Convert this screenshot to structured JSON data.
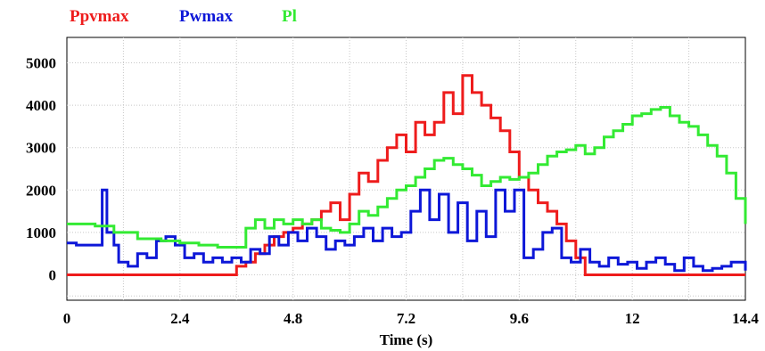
{
  "chart_data": {
    "type": "line",
    "step": true,
    "title": "",
    "xlabel": "Time (s)",
    "ylabel": "",
    "xlim": [
      0,
      14.4
    ],
    "ylim": [
      -600,
      5600
    ],
    "xticks": [
      0,
      2.4,
      4.8,
      7.2,
      9.6,
      12,
      14.4
    ],
    "xtick_labels": [
      "0",
      "2.4",
      "4.8",
      "7.2",
      "9.6",
      "12",
      "14.4"
    ],
    "yticks": [
      0,
      1000,
      2000,
      3000,
      4000,
      5000
    ],
    "ytick_labels": [
      "0",
      "1000",
      "2000",
      "3000",
      "4000",
      "5000"
    ],
    "grid": true,
    "legend_position": "top-left",
    "series": [
      {
        "name": "Ppvmax",
        "color": "#ee1c1c",
        "x": [
          0,
          3.6,
          3.8,
          4.0,
          4.2,
          4.4,
          4.6,
          4.8,
          5.0,
          5.2,
          5.4,
          5.6,
          5.8,
          6.0,
          6.2,
          6.4,
          6.6,
          6.8,
          7.0,
          7.2,
          7.4,
          7.6,
          7.8,
          8.0,
          8.2,
          8.4,
          8.6,
          8.8,
          9.0,
          9.2,
          9.4,
          9.6,
          9.8,
          10.0,
          10.2,
          10.4,
          10.6,
          10.8,
          11.0,
          14.4
        ],
        "y": [
          0,
          200,
          300,
          500,
          700,
          900,
          1000,
          1100,
          1200,
          1300,
          1500,
          1700,
          1300,
          1900,
          2400,
          2200,
          2700,
          3000,
          3300,
          2900,
          3600,
          3300,
          3600,
          4300,
          3800,
          4700,
          4300,
          4000,
          3700,
          3400,
          2900,
          2300,
          2000,
          1700,
          1500,
          1200,
          800,
          400,
          0,
          0
        ]
      },
      {
        "name": "Pwmax",
        "color": "#0d17d8",
        "x": [
          0,
          0.2,
          0.6,
          0.75,
          0.85,
          1.0,
          1.1,
          1.3,
          1.5,
          1.7,
          1.9,
          2.1,
          2.3,
          2.5,
          2.7,
          2.9,
          3.1,
          3.3,
          3.5,
          3.7,
          3.9,
          4.1,
          4.3,
          4.5,
          4.7,
          4.9,
          5.1,
          5.3,
          5.5,
          5.7,
          5.9,
          6.1,
          6.3,
          6.5,
          6.7,
          6.9,
          7.1,
          7.3,
          7.5,
          7.7,
          7.9,
          8.1,
          8.3,
          8.5,
          8.7,
          8.9,
          9.1,
          9.3,
          9.5,
          9.7,
          9.9,
          10.1,
          10.3,
          10.5,
          10.7,
          10.9,
          11.1,
          11.3,
          11.5,
          11.7,
          11.9,
          12.1,
          12.3,
          12.5,
          12.7,
          12.9,
          13.1,
          13.3,
          13.5,
          13.7,
          13.9,
          14.1,
          14.4
        ],
        "y": [
          750,
          700,
          700,
          2000,
          1000,
          700,
          300,
          200,
          500,
          400,
          800,
          900,
          700,
          400,
          500,
          300,
          400,
          300,
          400,
          300,
          600,
          500,
          900,
          700,
          1000,
          800,
          1100,
          900,
          600,
          800,
          700,
          900,
          1100,
          800,
          1100,
          900,
          1000,
          1500,
          2000,
          1300,
          1900,
          1000,
          1700,
          800,
          1500,
          900,
          2000,
          1500,
          2000,
          400,
          600,
          1000,
          1100,
          400,
          300,
          600,
          300,
          200,
          400,
          250,
          300,
          150,
          300,
          400,
          250,
          100,
          400,
          200,
          100,
          150,
          200,
          300,
          100
        ]
      },
      {
        "name": "Pl",
        "color": "#33ea33",
        "x": [
          0,
          0.6,
          1.0,
          1.5,
          2.0,
          2.4,
          2.8,
          3.2,
          3.6,
          3.8,
          4.0,
          4.2,
          4.4,
          4.6,
          4.8,
          5.0,
          5.2,
          5.4,
          5.6,
          5.8,
          6.0,
          6.2,
          6.4,
          6.6,
          6.8,
          7.0,
          7.2,
          7.4,
          7.6,
          7.8,
          8.0,
          8.2,
          8.4,
          8.6,
          8.8,
          9.0,
          9.2,
          9.4,
          9.6,
          9.8,
          10.0,
          10.2,
          10.4,
          10.6,
          10.8,
          11.0,
          11.2,
          11.4,
          11.6,
          11.8,
          12.0,
          12.2,
          12.4,
          12.6,
          12.8,
          13.0,
          13.2,
          13.4,
          13.6,
          13.8,
          14.0,
          14.2,
          14.4
        ],
        "y": [
          1200,
          1150,
          1000,
          850,
          800,
          750,
          700,
          650,
          650,
          1100,
          1300,
          1100,
          1300,
          1200,
          1300,
          1200,
          1300,
          1100,
          1050,
          1000,
          1200,
          1500,
          1400,
          1600,
          1800,
          2000,
          2100,
          2300,
          2500,
          2700,
          2750,
          2600,
          2500,
          2350,
          2100,
          2200,
          2300,
          2250,
          2300,
          2400,
          2600,
          2800,
          2900,
          2950,
          3050,
          2850,
          3000,
          3250,
          3400,
          3550,
          3750,
          3800,
          3900,
          3950,
          3750,
          3600,
          3500,
          3300,
          3050,
          2800,
          2400,
          1800,
          1200
        ]
      }
    ]
  }
}
